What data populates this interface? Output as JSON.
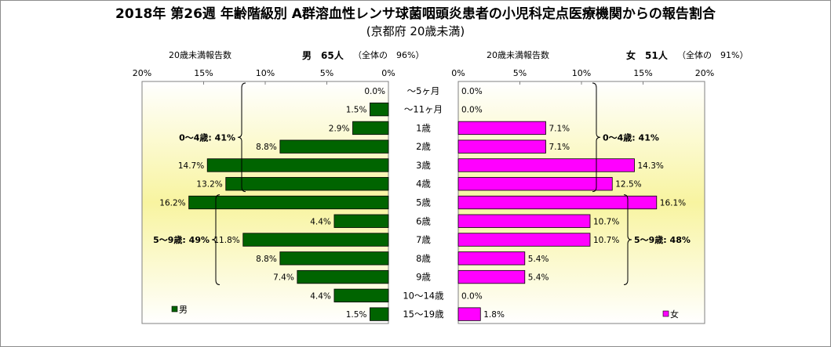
{
  "title": "2018年 第26週 年齢階級別 A群溶血性レンサ球菌咽頭炎患者の小児科定点医療機関からの報告割合",
  "subtitle": "(京都府 20歳未満)",
  "male_header": {
    "label": "20歳未満報告数",
    "count": "男　65人",
    "share": "（全体の　96%）"
  },
  "female_header": {
    "label": "20歳未満報告数",
    "count": "女　51人",
    "share": "（全体の　91%）"
  },
  "colors": {
    "male": "#006400",
    "female": "#ff00ff",
    "plot_bg_center": "#f8f4a0",
    "plot_bg_edge": "#ffffff"
  },
  "chart_data": {
    "type": "bar",
    "orientation": "horizontal",
    "layout": "population-pyramid",
    "categories": [
      "～5ヶ月",
      "～11ヶ月",
      "1歳",
      "2歳",
      "3歳",
      "4歳",
      "5歳",
      "6歳",
      "7歳",
      "8歳",
      "9歳",
      "10～14歳",
      "15～19歳"
    ],
    "series": [
      {
        "name": "男",
        "values": [
          0.0,
          1.5,
          2.9,
          8.8,
          14.7,
          13.2,
          16.2,
          4.4,
          11.8,
          8.8,
          7.4,
          4.4,
          1.5
        ]
      },
      {
        "name": "女",
        "values": [
          0.0,
          0.0,
          7.1,
          7.1,
          14.3,
          12.5,
          16.1,
          10.7,
          10.7,
          5.4,
          5.4,
          0.0,
          1.8
        ]
      }
    ],
    "value_unit": "%",
    "xlim": [
      0,
      20
    ],
    "male_axis_ticks": [
      "20%",
      "15%",
      "10%",
      "5%",
      "0%"
    ],
    "female_axis_ticks": [
      "0%",
      "5%",
      "10%",
      "15%",
      "20%"
    ],
    "male_groups": [
      {
        "label": "0～4歳: 41%",
        "from": 0,
        "to": 5
      },
      {
        "label": "5～9歳: 49%",
        "from": 6,
        "to": 10
      }
    ],
    "female_groups": [
      {
        "label": "0～4歳: 41%",
        "from": 0,
        "to": 5
      },
      {
        "label": "5～9歳: 48%",
        "from": 6,
        "to": 10
      }
    ],
    "legend": {
      "male": "男",
      "female": "女"
    }
  }
}
